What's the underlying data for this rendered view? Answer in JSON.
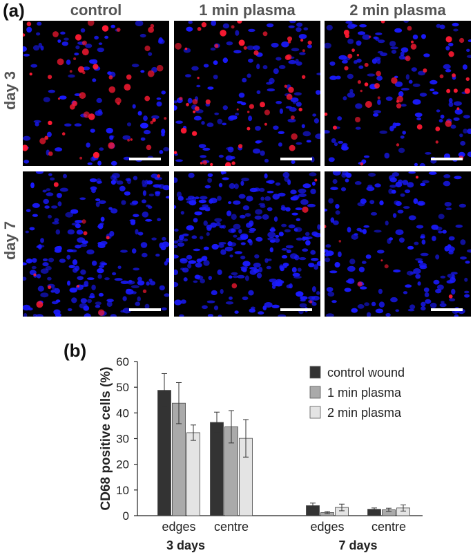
{
  "figure": {
    "panel_a_label": "(a)",
    "panel_b_label": "(b)",
    "columns": [
      "control",
      "1 min plasma",
      "2 min plasma"
    ],
    "rows": [
      "day 3",
      "day 7"
    ],
    "images": [
      {
        "row": "day 3",
        "column": "control",
        "red_density": 0.55,
        "blue_density": 0.35
      },
      {
        "row": "day 3",
        "column": "1 min plasma",
        "red_density": 0.55,
        "blue_density": 0.45
      },
      {
        "row": "day 3",
        "column": "2 min plasma",
        "red_density": 0.5,
        "blue_density": 0.5
      },
      {
        "row": "day 7",
        "column": "control",
        "red_density": 0.12,
        "blue_density": 0.8
      },
      {
        "row": "day 7",
        "column": "1 min plasma",
        "red_density": 0.04,
        "blue_density": 1.0
      },
      {
        "row": "day 7",
        "column": "2 min plasma",
        "red_density": 0.08,
        "blue_density": 0.65
      }
    ],
    "colors": {
      "nuclei": "#1a1aff",
      "cd68": "#ff1a33",
      "scale_bar": "#ffffff",
      "background": "#000000"
    }
  },
  "chart_data": {
    "type": "bar",
    "ylabel": "CD68 positive cells (%)",
    "ylim": [
      0,
      60
    ],
    "yticks": [
      0,
      10,
      20,
      30,
      40,
      50,
      60
    ],
    "groups": [
      {
        "label": "3 days",
        "categories": [
          "edges",
          "centre"
        ]
      },
      {
        "label": "7 days",
        "categories": [
          "edges",
          "centre"
        ]
      }
    ],
    "categories": [
      "edges",
      "centre",
      "edges",
      "centre"
    ],
    "series": [
      {
        "name": "control wound",
        "color": "#333333",
        "values": [
          48.8,
          36.3,
          3.9,
          2.5
        ],
        "errors": [
          6.5,
          4.0,
          1.0,
          0.5
        ]
      },
      {
        "name": "1 min plasma",
        "color": "#aaaaaa",
        "values": [
          43.8,
          34.6,
          1.2,
          2.3
        ],
        "errors": [
          8.0,
          6.3,
          0.4,
          0.6
        ]
      },
      {
        "name": "2 min plasma",
        "color": "#e4e4e4",
        "values": [
          32.3,
          30.1,
          3.2,
          3.0
        ],
        "errors": [
          3.0,
          7.3,
          1.3,
          1.2
        ]
      }
    ],
    "legend_position": "top-right",
    "grid": false
  }
}
